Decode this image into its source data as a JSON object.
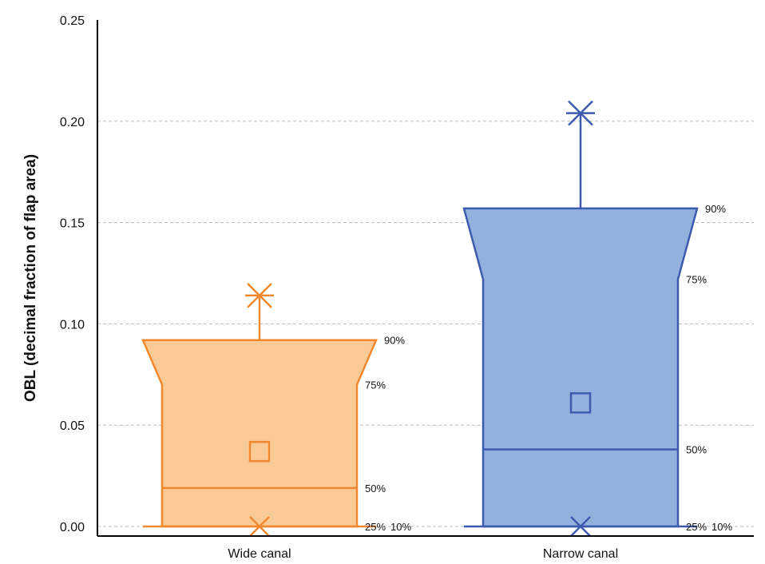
{
  "chart_data": {
    "type": "box",
    "ylabel": "OBL (decimal fraction of flap area)",
    "xlabel": "",
    "ylim": [
      0,
      0.25
    ],
    "yticks": [
      "0.00",
      "0.05",
      "0.10",
      "0.15",
      "0.20",
      "0.25"
    ],
    "grid": true,
    "categories": [
      "Wide canal",
      "Narrow canal"
    ],
    "series": [
      {
        "category": "Wide canal",
        "p10": 0.0,
        "p25": 0.0,
        "p50": 0.019,
        "p75": 0.07,
        "p90": 0.092,
        "mean": 0.037,
        "min": 0.0,
        "max": 0.114,
        "stroke": "#F0892E",
        "fill": "#FACA96"
      },
      {
        "category": "Narrow canal",
        "p10": 0.0,
        "p25": 0.0,
        "p50": 0.038,
        "p75": 0.122,
        "p90": 0.157,
        "mean": 0.061,
        "min": 0.0,
        "max": 0.204,
        "stroke": "#3C5BAF",
        "fill": "#92B1DD"
      }
    ],
    "percentile_labels": {
      "p90": "90%",
      "p75": "75%",
      "p50": "50%",
      "p25": "25%",
      "p10": "10%"
    }
  }
}
